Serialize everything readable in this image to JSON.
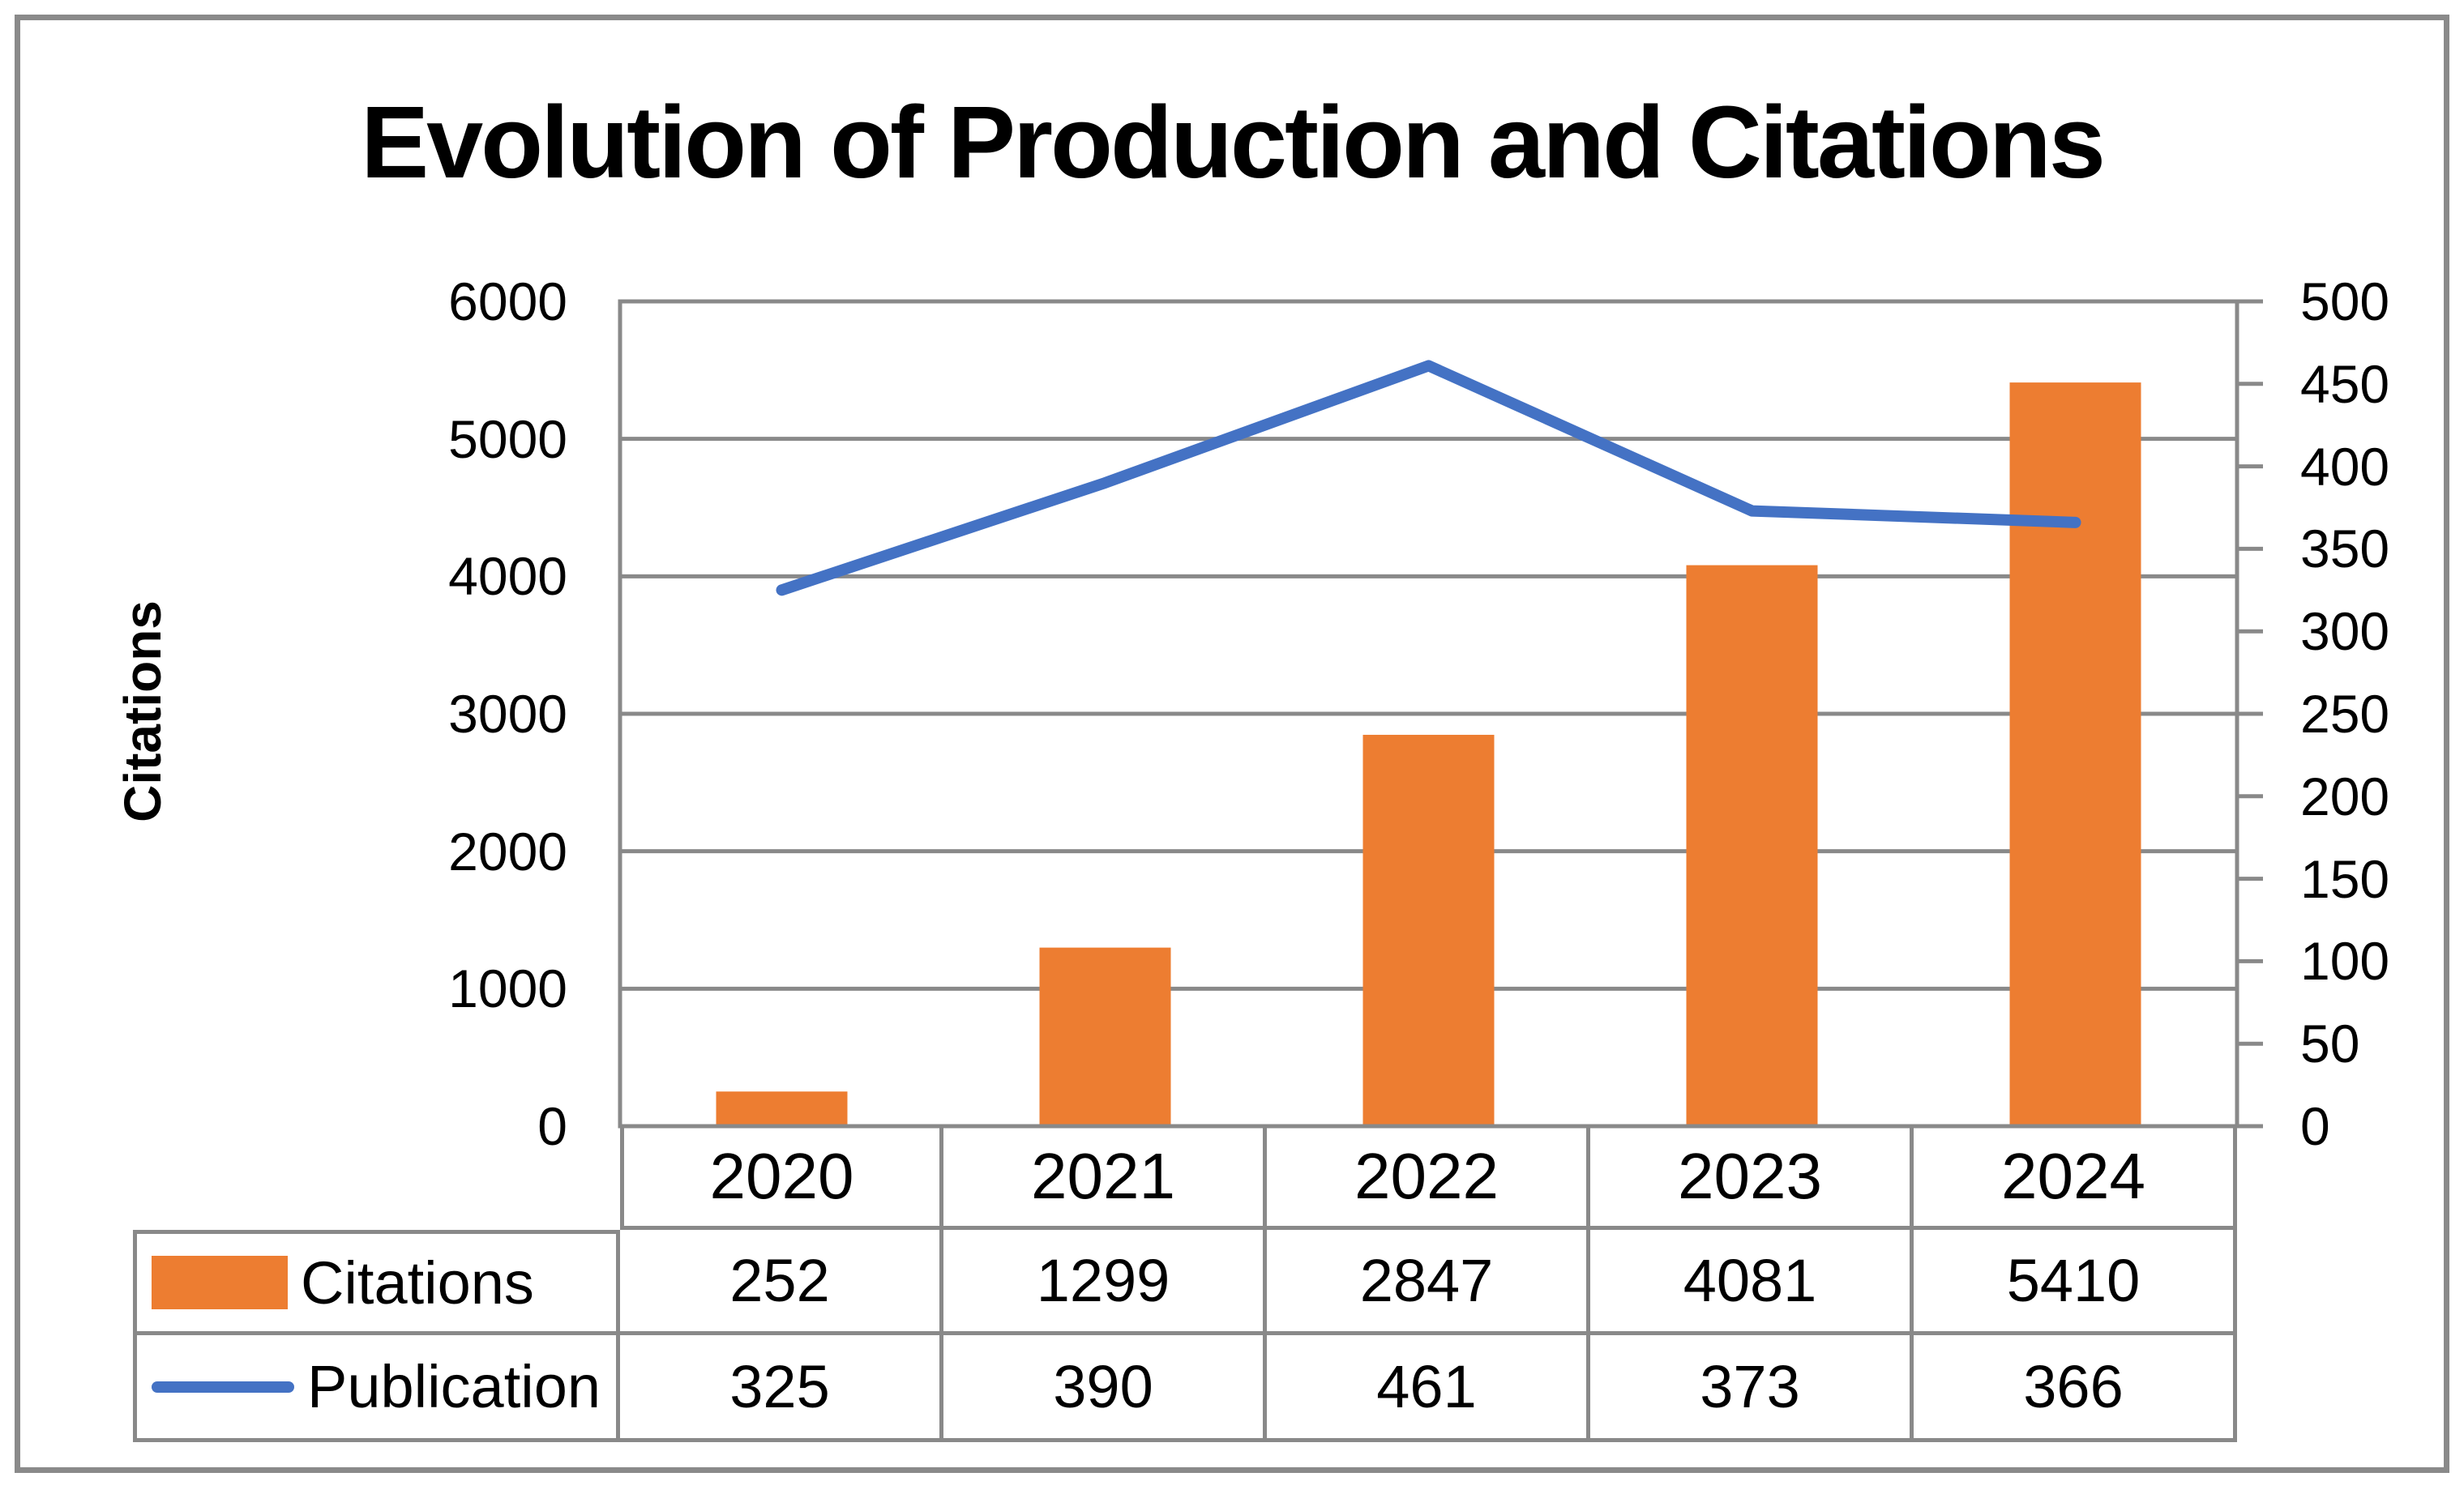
{
  "title": "Evolution of Production and Citations",
  "left_axis": {
    "title": "Citations",
    "tick_labels": [
      "6000",
      "5000",
      "4000",
      "3000",
      "2000",
      "1000",
      "0"
    ]
  },
  "right_axis": {
    "tick_labels": [
      "500",
      "450",
      "400",
      "350",
      "300",
      "250",
      "200",
      "150",
      "100",
      "50",
      "0"
    ]
  },
  "chart_data": {
    "type": "combo-bar-line",
    "categories": [
      "2020",
      "2021",
      "2022",
      "2023",
      "2024"
    ],
    "series": [
      {
        "name": "Citations",
        "type": "bar",
        "axis": "left",
        "color": "#ED7D31",
        "values": [
          252,
          1299,
          2847,
          4081,
          5410
        ]
      },
      {
        "name": "Publication",
        "type": "line",
        "axis": "right",
        "color": "#4472C4",
        "values": [
          325,
          390,
          461,
          373,
          366
        ]
      }
    ],
    "left_axis_range": [
      0,
      6000
    ],
    "right_axis_range": [
      0,
      500
    ],
    "grid": "horizontal",
    "legend_position": "table-left-column"
  },
  "colors": {
    "grid": "#898989",
    "bar": "#ED7D31",
    "line": "#4472C4",
    "text": "#000000"
  }
}
